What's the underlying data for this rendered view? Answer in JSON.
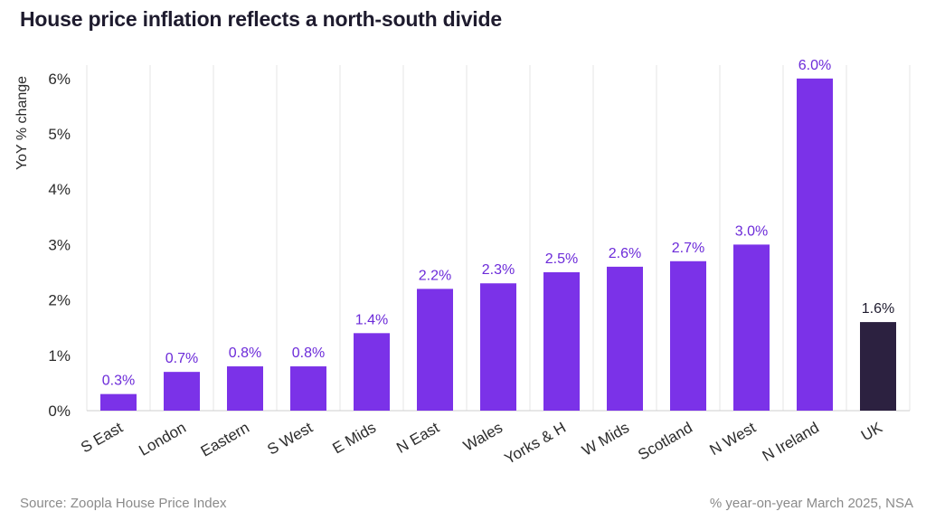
{
  "chart_data": {
    "type": "bar",
    "title": "House price inflation reflects a north-south divide",
    "ylabel": "YoY % change",
    "xlabel": "",
    "ylim": [
      0,
      6.2
    ],
    "yticks": [
      "0%",
      "1%",
      "2%",
      "3%",
      "4%",
      "5%",
      "6%"
    ],
    "categories": [
      "S East",
      "London",
      "Eastern",
      "S West",
      "E Mids",
      "N East",
      "Wales",
      "Yorks & H",
      "W Mids",
      "Scotland",
      "N West",
      "N Ireland",
      "UK"
    ],
    "values": [
      0.3,
      0.7,
      0.8,
      0.8,
      1.4,
      2.2,
      2.3,
      2.5,
      2.6,
      2.7,
      3.0,
      6.0,
      1.6
    ],
    "value_labels": [
      "0.3%",
      "0.7%",
      "0.8%",
      "0.8%",
      "1.4%",
      "2.2%",
      "2.3%",
      "2.5%",
      "2.6%",
      "2.7%",
      "3.0%",
      "6.0%",
      "1.6%"
    ],
    "highlight_category": "UK",
    "grid": "vertical separators",
    "colors": {
      "bar": "#7B32E8",
      "highlight_bar": "#2C2140",
      "label": "#6C2BD9",
      "highlight_label": "#1e1b2e"
    }
  },
  "footer": {
    "source": "Source: Zoopla House Price Index",
    "note": "% year-on-year March 2025, NSA"
  }
}
